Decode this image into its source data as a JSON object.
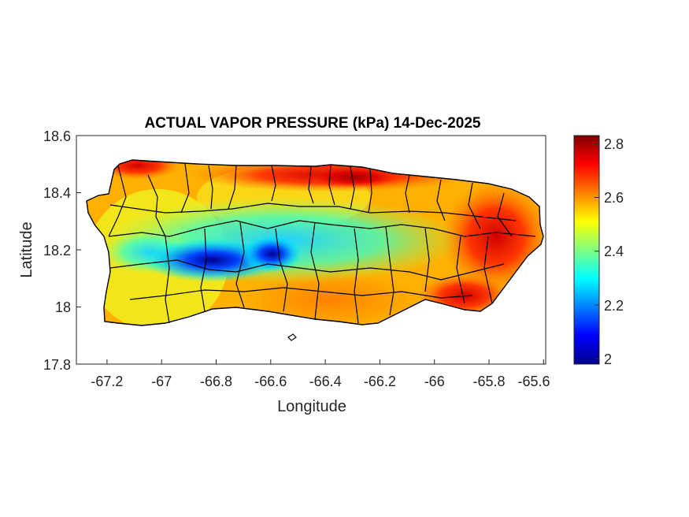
{
  "chart_data": {
    "type": "heatmap",
    "title": "ACTUAL VAPOR PRESSURE (kPa) 14-Dec-2025",
    "xlabel": "Longitude",
    "ylabel": "Latitude",
    "xlim": [
      -67.3,
      -65.58
    ],
    "ylim": [
      17.8,
      18.6
    ],
    "x_ticks": [
      -67.2,
      -67,
      -66.8,
      -66.6,
      -66.4,
      -66.2,
      -66,
      -65.8,
      -65.6
    ],
    "x_tick_labels": [
      "-67.2",
      "-67",
      "-66.8",
      "-66.6",
      "-66.4",
      "-66.2",
      "-66",
      "-65.8",
      "-65.6"
    ],
    "y_ticks": [
      17.8,
      18,
      18.2,
      18.4,
      18.6
    ],
    "y_tick_labels": [
      "17.8",
      "18",
      "18.2",
      "18.4",
      "18.6"
    ],
    "colorbar": {
      "colormap": "jet",
      "range": [
        1.98,
        2.83
      ],
      "ticks": [
        2,
        2.2,
        2.4,
        2.6,
        2.8
      ],
      "tick_labels": [
        "2",
        "2.2",
        "2.4",
        "2.6",
        "2.8"
      ]
    },
    "field": {
      "description_points": [
        {
          "lon": -66.82,
          "lat": 18.15,
          "value": 2.02
        },
        {
          "lon": -66.6,
          "lat": 18.17,
          "value": 2.05
        },
        {
          "lon": -66.95,
          "lat": 18.18,
          "value": 2.15
        },
        {
          "lon": -66.7,
          "lat": 18.25,
          "value": 2.35
        },
        {
          "lon": -66.35,
          "lat": 18.22,
          "value": 2.38
        },
        {
          "lon": -66.15,
          "lat": 18.18,
          "value": 2.45
        },
        {
          "lon": -65.95,
          "lat": 18.08,
          "value": 2.75
        },
        {
          "lon": -65.75,
          "lat": 18.2,
          "value": 2.75
        },
        {
          "lon": -66.35,
          "lat": 18.46,
          "value": 2.8
        },
        {
          "lon": -67.1,
          "lat": 18.48,
          "value": 2.7
        },
        {
          "lon": -67.15,
          "lat": 18.1,
          "value": 2.5
        },
        {
          "lon": -66.45,
          "lat": 17.97,
          "value": 2.6
        }
      ]
    },
    "grid": false
  }
}
